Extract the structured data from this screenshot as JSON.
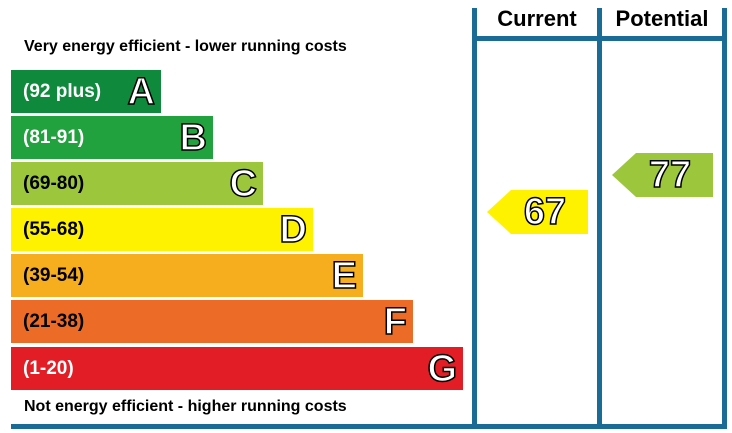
{
  "header": {
    "current": "Current",
    "potential": "Potential"
  },
  "notes": {
    "top": "Very energy efficient - lower running costs",
    "bottom": "Not energy efficient - higher running costs"
  },
  "bands": [
    {
      "range": "(92 plus)",
      "letter": "A",
      "color": "#0f8a3c"
    },
    {
      "range": "(81-91)",
      "letter": "B",
      "color": "#22a23e"
    },
    {
      "range": "(69-80)",
      "letter": "C",
      "color": "#9cc63c"
    },
    {
      "range": "(55-68)",
      "letter": "D",
      "color": "#fff200"
    },
    {
      "range": "(39-54)",
      "letter": "E",
      "color": "#f6ae1f"
    },
    {
      "range": "(21-38)",
      "letter": "F",
      "color": "#ec6b26"
    },
    {
      "range": "(1-20)",
      "letter": "G",
      "color": "#e31d25"
    }
  ],
  "ratings": {
    "current": {
      "value": "67",
      "color": "#fff200"
    },
    "potential": {
      "value": "77",
      "color": "#9cc63c"
    }
  },
  "frame_color": "#1a6b95"
}
